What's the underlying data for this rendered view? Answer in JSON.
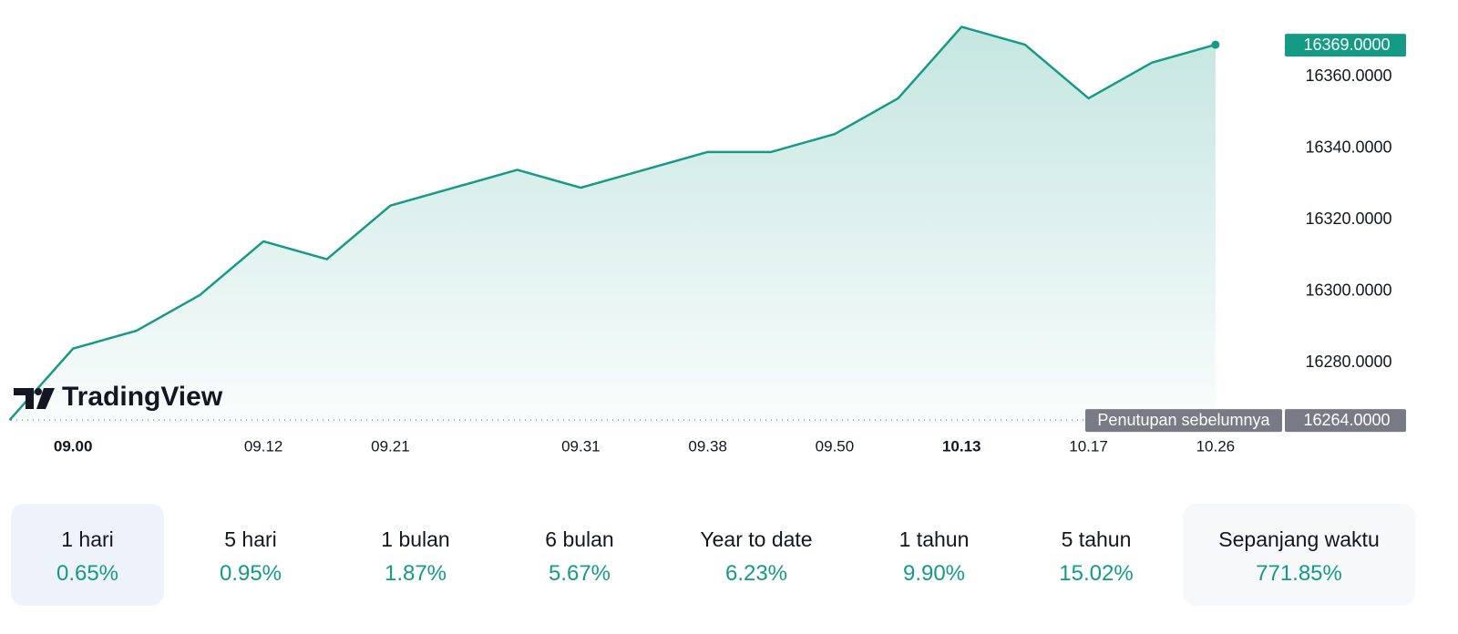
{
  "chart_data": {
    "type": "area",
    "categories": [
      null,
      "09.00",
      null,
      null,
      "09.12",
      null,
      "09.21",
      null,
      null,
      "09.31",
      null,
      "09.38",
      null,
      "09.50",
      null,
      "10.13",
      null,
      "10.17",
      null,
      "10.26"
    ],
    "series": [
      {
        "color": "#159b84",
        "values": [
          16264,
          16284,
          16289,
          16299,
          16314,
          16309,
          16324,
          16329,
          16334,
          16329,
          16334,
          16339,
          16339,
          16344,
          16354,
          16374,
          16369,
          16354,
          16364,
          16369
        ]
      }
    ],
    "ylim": [
      16262,
      16381
    ],
    "yticks": [
      {
        "value": 16280,
        "label": "16280.0000"
      },
      {
        "value": 16300,
        "label": "16300.0000"
      },
      {
        "value": 16320,
        "label": "16320.0000"
      },
      {
        "value": 16340,
        "label": "16340.0000"
      },
      {
        "value": 16360,
        "label": "16360.0000"
      }
    ],
    "last_value_label": "16369.0000",
    "previous_close": {
      "label": "Penutupan sebelumnya",
      "value": 16264,
      "value_label": "16264.0000"
    },
    "watermark": "TradingView"
  },
  "periods": [
    {
      "label": "1 hari",
      "change": 0.65,
      "change_label": "0.65%"
    },
    {
      "label": "5 hari",
      "change": 0.95,
      "change_label": "0.95%"
    },
    {
      "label": "1 bulan",
      "change": 1.87,
      "change_label": "1.87%"
    },
    {
      "label": "6 bulan",
      "change": 5.67,
      "change_label": "5.67%"
    },
    {
      "label": "Year to date",
      "change": 6.23,
      "change_label": "6.23%"
    },
    {
      "label": "1 tahun",
      "change": 9.9,
      "change_label": "9.90%"
    },
    {
      "label": "5 tahun",
      "change": 15.02,
      "change_label": "15.02%"
    },
    {
      "label": "Sepanjang waktu",
      "change": 771.85,
      "change_label": "771.85%"
    }
  ]
}
